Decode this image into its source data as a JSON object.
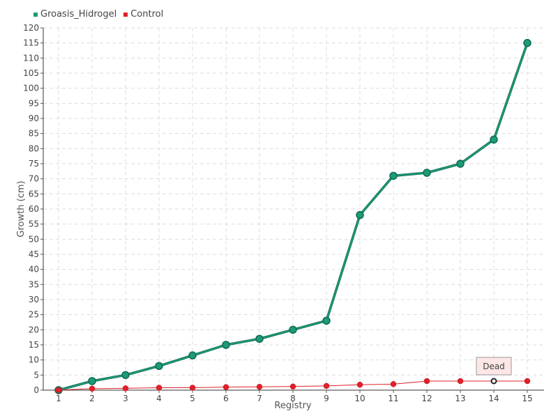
{
  "chart_data": {
    "type": "line",
    "xlabel": "Registry",
    "ylabel": "Growth (cm)",
    "categories": [
      "1",
      "2",
      "3",
      "4",
      "5",
      "6",
      "7",
      "8",
      "9",
      "10",
      "11",
      "12",
      "13",
      "14",
      "15"
    ],
    "ylim": [
      0,
      120
    ],
    "yticks": [
      0,
      5,
      10,
      15,
      20,
      25,
      30,
      35,
      40,
      45,
      50,
      55,
      60,
      65,
      70,
      75,
      80,
      85,
      90,
      95,
      100,
      105,
      110,
      115,
      120
    ],
    "grid": true,
    "legend_position": "top-left",
    "series": [
      {
        "name": "Groasis_Hidrogel",
        "color": "#1e9a78",
        "values": [
          0,
          3,
          5,
          8,
          11.5,
          15,
          17,
          20,
          23,
          58,
          71,
          72,
          75,
          83,
          115
        ]
      },
      {
        "name": "Control",
        "color": "#e0202a",
        "values": [
          0,
          0.5,
          0.6,
          0.8,
          0.8,
          1,
          1.1,
          1.2,
          1.4,
          1.8,
          2,
          3,
          3,
          3,
          3
        ]
      }
    ],
    "annotations": [
      {
        "text": "Dead",
        "series": 1,
        "index": 13
      }
    ]
  }
}
